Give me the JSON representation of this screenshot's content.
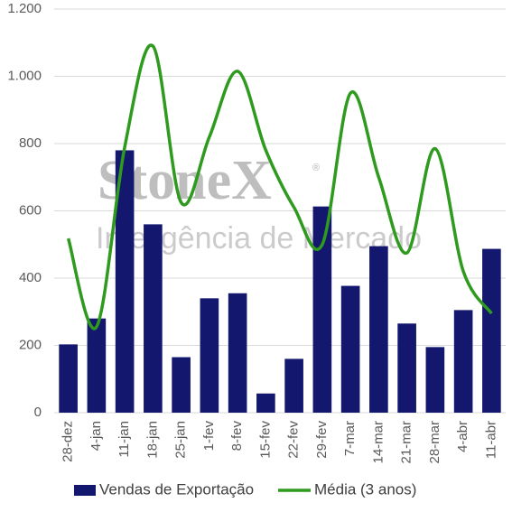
{
  "chart_data": {
    "type": "bar_line",
    "watermark": {
      "brand": "StoneX",
      "mark": "®",
      "subtitle": "Inteligência de Mercado"
    },
    "categories": [
      "28-dez",
      "4-jan",
      "11-jan",
      "18-jan",
      "25-jan",
      "1-fev",
      "8-fev",
      "15-fev",
      "22-fev",
      "29-fev",
      "7-mar",
      "14-mar",
      "21-mar",
      "28-mar",
      "4-abr",
      "11-abr"
    ],
    "series": [
      {
        "name": "Vendas de Exportação",
        "type": "bar",
        "color": "#13176e",
        "values": [
          203,
          280,
          780,
          560,
          165,
          340,
          355,
          57,
          160,
          613,
          377,
          495,
          265,
          195,
          305,
          487
        ]
      },
      {
        "name": "Média (3 anos)",
        "type": "line",
        "color": "#2e9a1e",
        "values": [
          518,
          255,
          790,
          1090,
          625,
          820,
          1015,
          780,
          610,
          500,
          950,
          700,
          475,
          785,
          420,
          295
        ]
      }
    ],
    "ylim": [
      0,
      1200
    ],
    "yticks": [
      0,
      200,
      400,
      600,
      800,
      {
        "value": 1000,
        "label": "1.000"
      },
      {
        "value": 1200,
        "label": "1.200"
      }
    ],
    "grid": true
  }
}
